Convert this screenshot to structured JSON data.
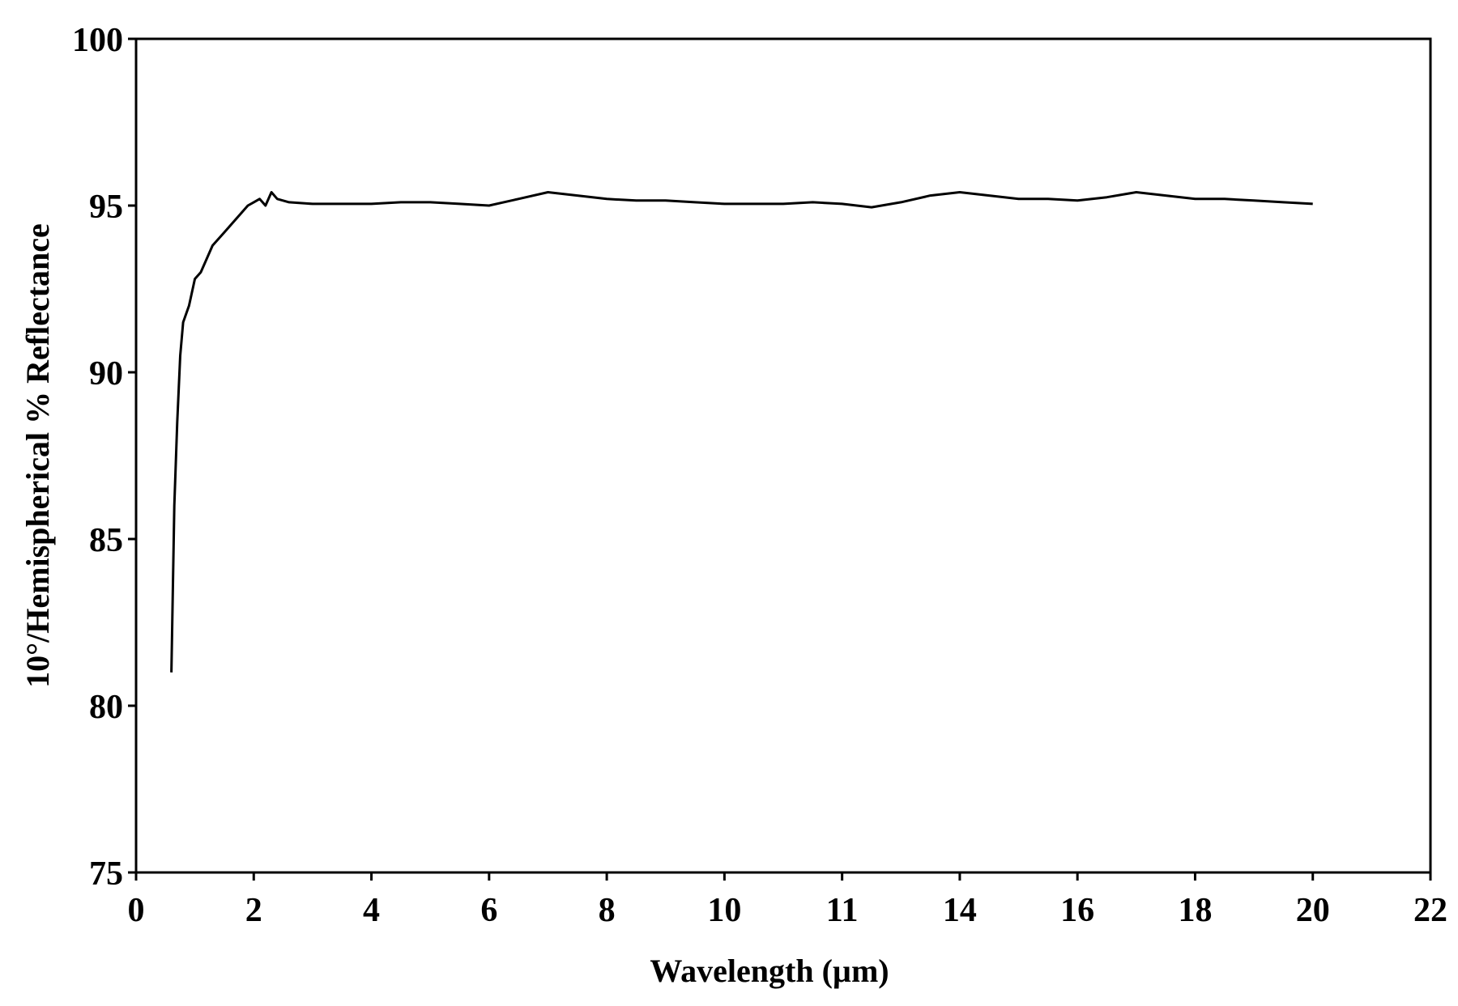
{
  "chart_data": {
    "type": "line",
    "title": "",
    "xlabel": "Wavelength (µm)",
    "ylabel": "10°/Hemispherical % Reflectance",
    "xlim": [
      0,
      22
    ],
    "ylim": [
      75,
      100
    ],
    "x_ticks": [
      "0",
      "2",
      "4",
      "6",
      "8",
      "10",
      "11",
      "14",
      "16",
      "18",
      "20",
      "22"
    ],
    "y_ticks": [
      "75",
      "80",
      "85",
      "90",
      "95",
      "100"
    ],
    "grid": false,
    "line_color": "#000000",
    "series": [
      {
        "x": [
          0.6,
          0.65,
          0.7,
          0.75,
          0.8,
          0.9,
          1.0,
          1.1,
          1.3,
          1.5,
          1.7,
          1.9,
          2.0,
          2.1,
          2.2,
          2.3,
          2.4,
          2.6,
          3.0,
          4.0,
          4.5,
          5.0,
          5.5,
          6.0,
          6.5,
          7.0,
          7.5,
          8.0,
          8.5,
          9.0,
          9.5,
          10.0,
          10.5,
          11.0,
          11.5,
          12.0,
          12.5,
          13.0,
          13.5,
          14.0,
          14.5,
          15.0,
          15.5,
          16.0,
          16.5,
          17.0,
          17.5,
          18.0,
          18.5,
          19.0,
          19.5,
          20.0
        ],
        "y": [
          81.0,
          86.0,
          88.5,
          90.5,
          91.5,
          92.0,
          92.8,
          93.0,
          93.8,
          94.2,
          94.6,
          95.0,
          95.1,
          95.2,
          95.0,
          95.4,
          95.2,
          95.1,
          95.05,
          95.05,
          95.1,
          95.1,
          95.05,
          95.0,
          95.2,
          95.4,
          95.3,
          95.2,
          95.15,
          95.15,
          95.1,
          95.05,
          95.05,
          95.05,
          95.1,
          95.05,
          94.95,
          95.1,
          95.3,
          95.4,
          95.3,
          95.2,
          95.2,
          95.15,
          95.25,
          95.4,
          95.3,
          95.2,
          95.2,
          95.15,
          95.1,
          95.05
        ]
      }
    ]
  }
}
